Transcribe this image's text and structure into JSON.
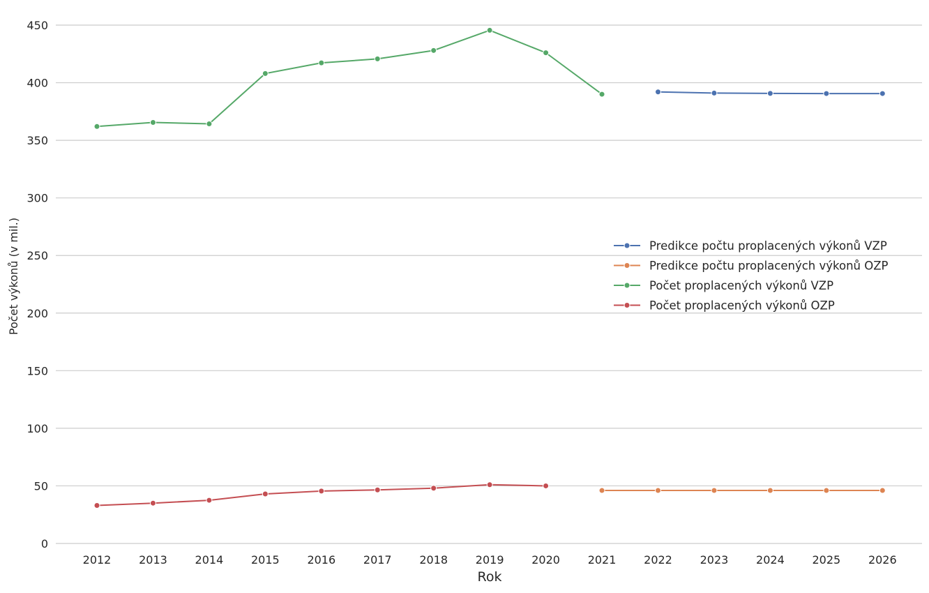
{
  "chart_data": {
    "type": "line",
    "title": "",
    "xlabel": "Rok",
    "ylabel": "Počet výkonů (v mil.)",
    "categories": [
      2012,
      2013,
      2014,
      2015,
      2016,
      2017,
      2018,
      2019,
      2020,
      2021,
      2022,
      2023,
      2024,
      2025,
      2026
    ],
    "ylim": [
      0,
      460
    ],
    "yticks": [
      0,
      50,
      100,
      150,
      200,
      250,
      300,
      350,
      400,
      450
    ],
    "grid": "horizontal",
    "legend_position": "center-right",
    "series": [
      {
        "name": "Predikce počtu proplacených výkonů VZP",
        "color": "#4c72b0",
        "x": [
          2022,
          2023,
          2024,
          2025,
          2026
        ],
        "values": [
          392,
          391,
          390.7,
          390.6,
          390.6
        ]
      },
      {
        "name": "Predikce počtu proplacených výkonů OZP",
        "color": "#dd8452",
        "x": [
          2021,
          2022,
          2023,
          2024,
          2025,
          2026
        ],
        "values": [
          46,
          46,
          46,
          46,
          46,
          46
        ]
      },
      {
        "name": "Počet proplacených výkonů VZP",
        "color": "#55a868",
        "x": [
          2012,
          2013,
          2014,
          2015,
          2016,
          2017,
          2018,
          2019,
          2020,
          2021
        ],
        "values": [
          362,
          365.5,
          364.3,
          408,
          417.2,
          420.7,
          428,
          445.5,
          426,
          390
        ]
      },
      {
        "name": "Počet proplacených výkonů OZP",
        "color": "#c44e52",
        "x": [
          2012,
          2013,
          2014,
          2015,
          2016,
          2017,
          2018,
          2019,
          2020
        ],
        "values": [
          33,
          35,
          37.5,
          43,
          45.5,
          46.5,
          48,
          51,
          50
        ]
      }
    ]
  }
}
